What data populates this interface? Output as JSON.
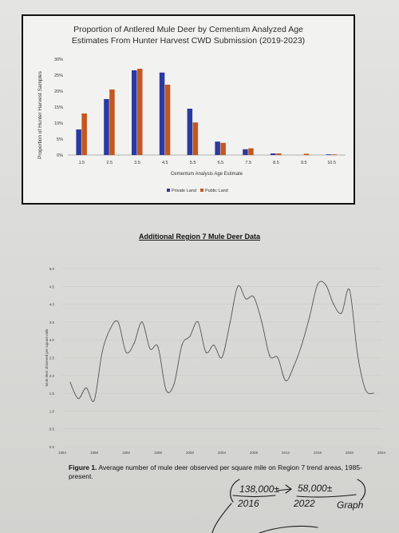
{
  "chart1": {
    "type": "bar",
    "title_line1": "Proportion of Antlered Mule Deer by Cementum Analyzed Age",
    "title_line2": "Estimates From Hunter Harvest CWD Submission (2019-2023)",
    "ylabel": "Proportion of Hunter Harvest Samples",
    "xlabel": "Cementum Analysis Age Estimate",
    "yticks": [
      "0%",
      "5%",
      "10%",
      "15%",
      "20%",
      "25%",
      "30%"
    ],
    "ylim": [
      0,
      30
    ],
    "categories": [
      "1.5",
      "2.5",
      "3.5",
      "4.5",
      "5.5",
      "6.5",
      "7.5",
      "8.5",
      "9.5",
      "10.5"
    ],
    "series": [
      {
        "name": "Private Land",
        "color": "#2b3a9e",
        "values": [
          8,
          17.5,
          26.5,
          25.8,
          14.5,
          4.2,
          1.8,
          0.5,
          0,
          0.2
        ]
      },
      {
        "name": "Public Land",
        "color": "#c4571f",
        "values": [
          13,
          20.5,
          27,
          22,
          10.2,
          3.8,
          2.1,
          0.5,
          0.4,
          0.2
        ]
      }
    ],
    "legend": "bottom"
  },
  "heading": "Additional Region 7 Mule Deer Data",
  "chart2": {
    "type": "line",
    "ylabel": "Mule deer observed per square mile",
    "yticks": [
      "0.0",
      "0.5",
      "1.0",
      "1.5",
      "2.0",
      "2.5",
      "3.0",
      "3.5",
      "4.0",
      "4.5",
      "5.0"
    ],
    "xticks": [
      "1984",
      "1988",
      "1992",
      "1996",
      "2000",
      "2004",
      "2008",
      "2012",
      "2016",
      "2020",
      "2024"
    ],
    "xlim": [
      1984,
      2024
    ],
    "ylim": [
      0,
      5
    ],
    "x": [
      1985,
      1986,
      1987,
      1988,
      1989,
      1990,
      1991,
      1992,
      1993,
      1994,
      1995,
      1996,
      1997,
      1998,
      1999,
      2000,
      2001,
      2002,
      2003,
      2004,
      2005,
      2006,
      2007,
      2008,
      2009,
      2010,
      2011,
      2012,
      2013,
      2014,
      2015,
      2016,
      2017,
      2018,
      2019,
      2020,
      2021,
      2022,
      2023
    ],
    "y": [
      1.8,
      1.35,
      1.65,
      1.3,
      2.65,
      3.3,
      3.5,
      2.65,
      2.9,
      3.5,
      2.75,
      2.8,
      1.6,
      1.75,
      2.85,
      3.1,
      3.5,
      2.65,
      2.85,
      2.5,
      3.45,
      4.5,
      4.15,
      4.2,
      3.5,
      2.55,
      2.5,
      1.85,
      2.25,
      2.85,
      3.65,
      4.55,
      4.55,
      4.0,
      3.75,
      4.4,
      2.6,
      1.6,
      1.5
    ]
  },
  "figure_label": "Figure 1.",
  "figure_caption": " Average number of mule deer observed per square mile on Region 7 trend areas, 1985-present.",
  "handwriting": {
    "left_top": "138,000±",
    "right_top": "58,000±",
    "left_bottom": "2016",
    "right_bottom": "2022",
    "word": "Graph"
  }
}
